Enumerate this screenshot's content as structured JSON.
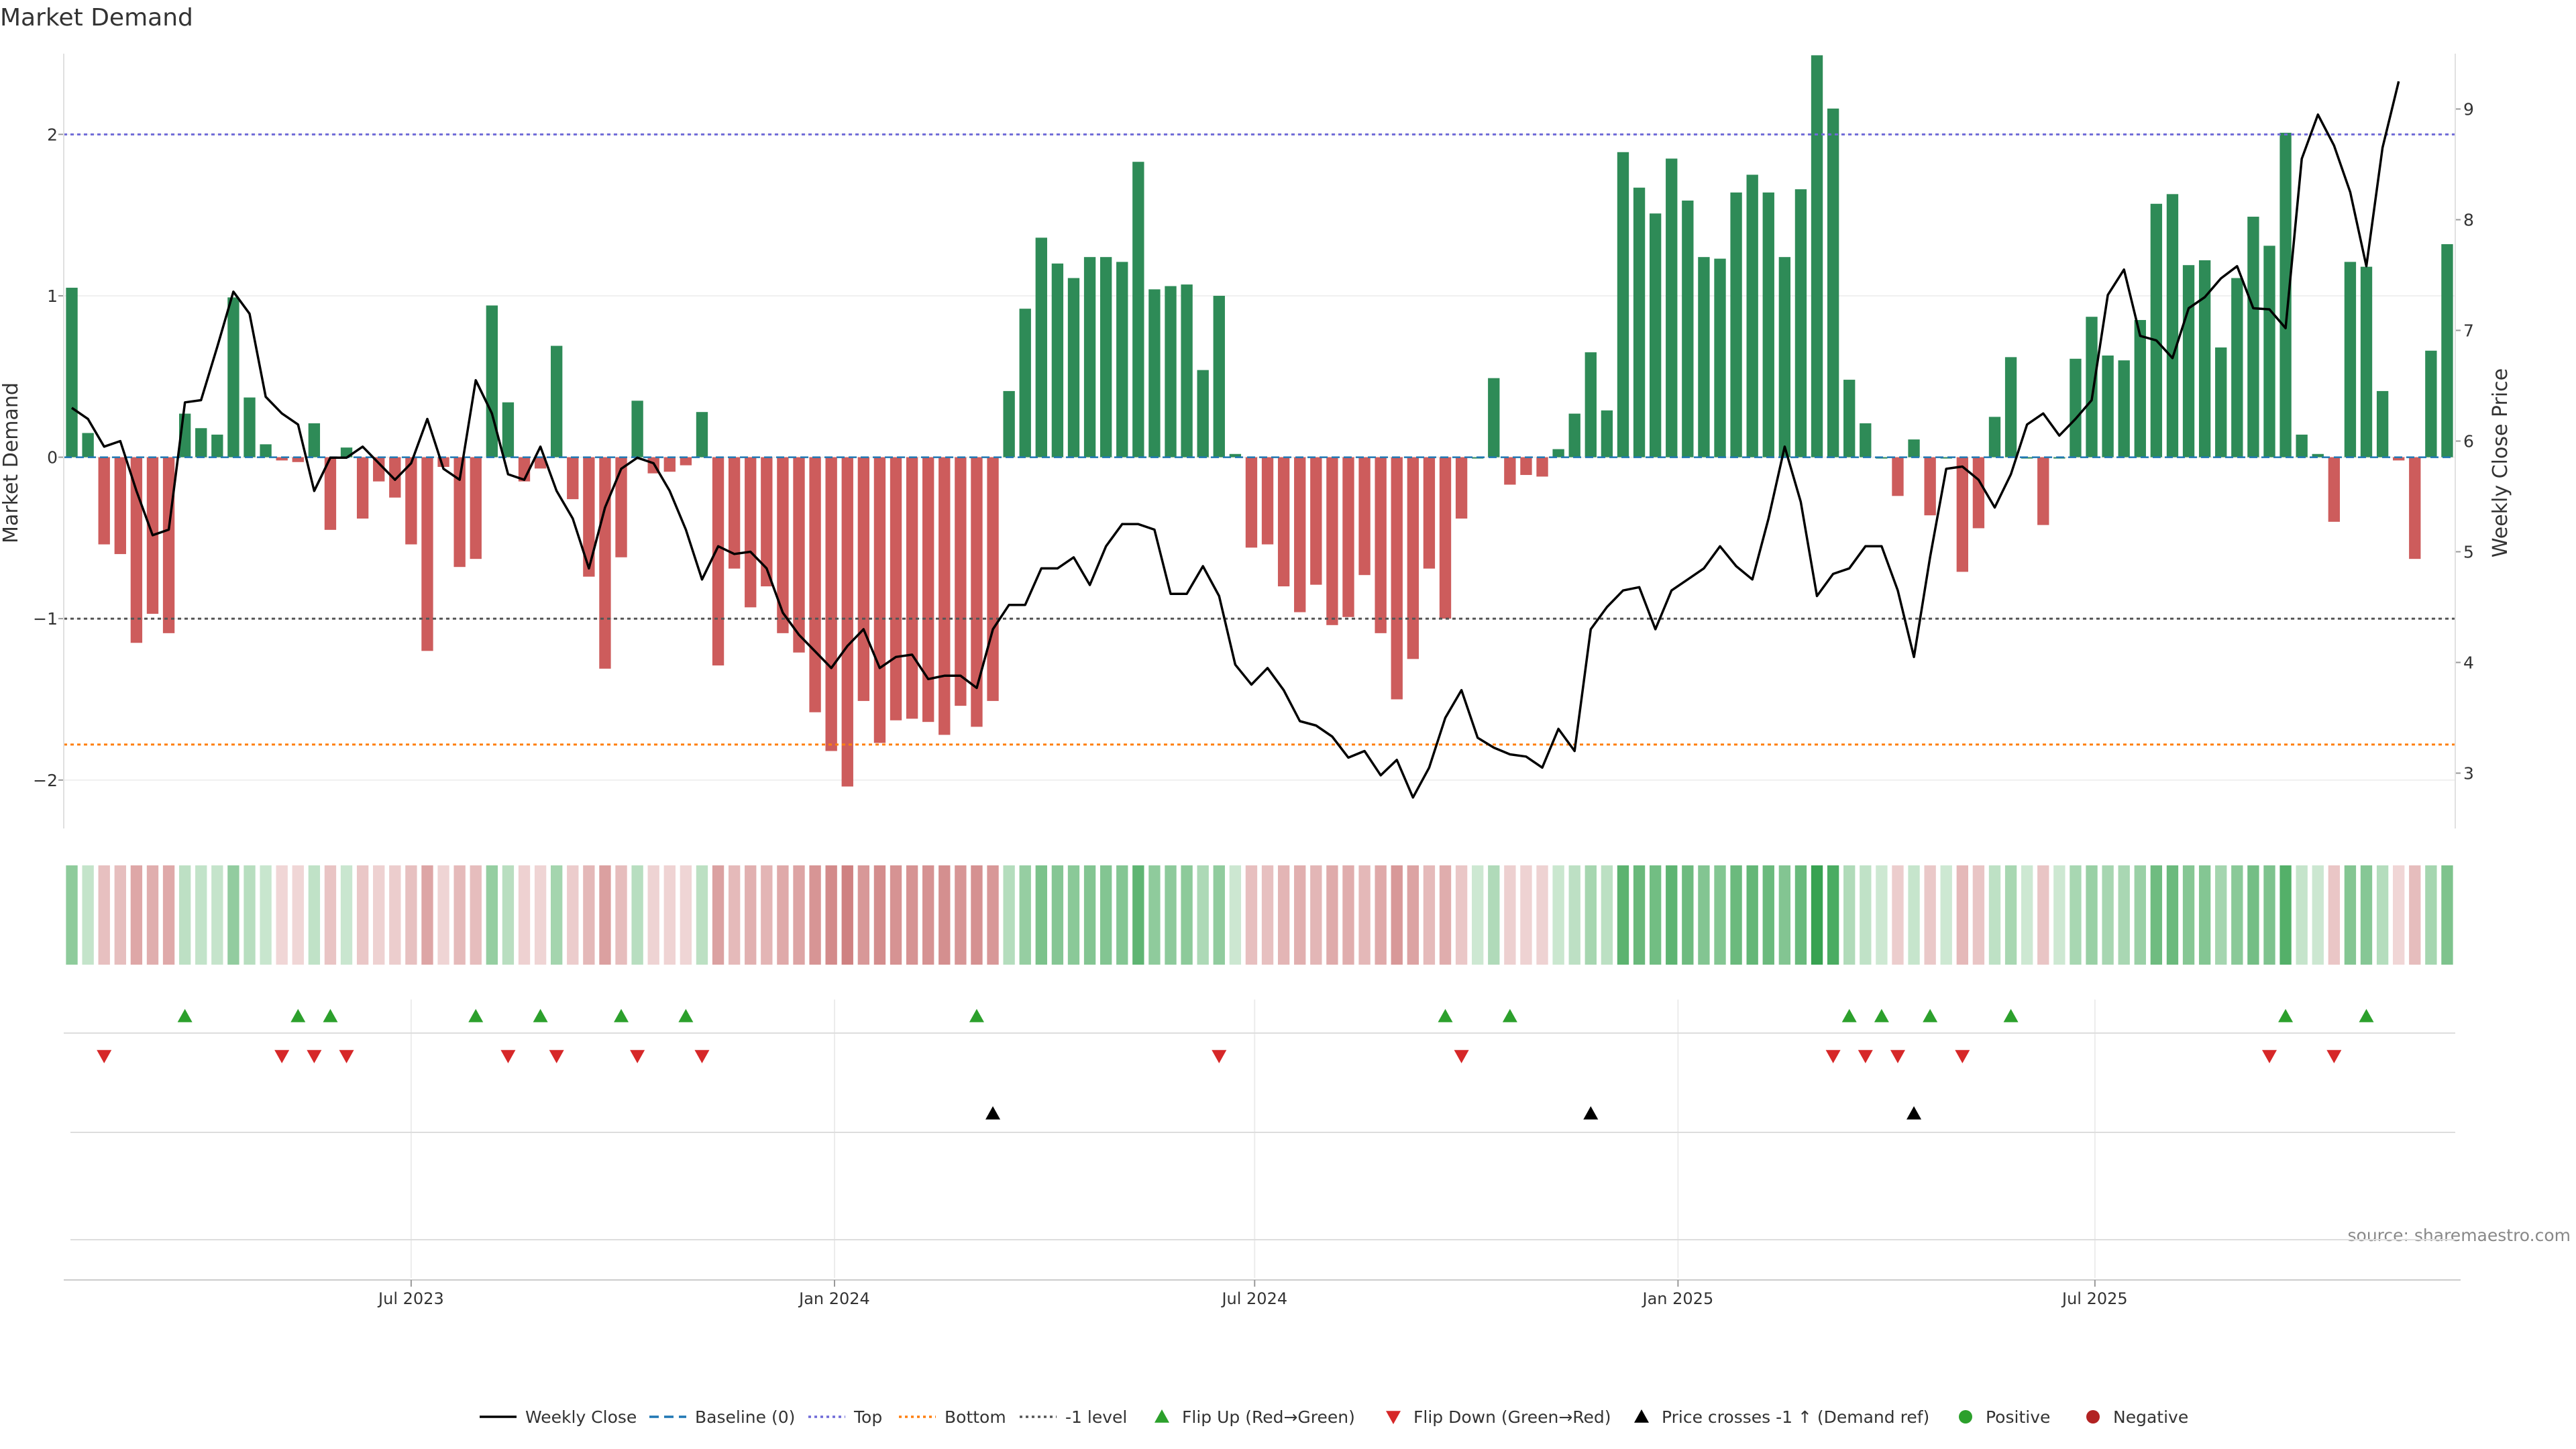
{
  "chart_data": {
    "type": "bar",
    "title": "Market Demand",
    "ylabel": "Market Demand",
    "y2label": "Weekly Close Price",
    "ylim": [
      -2.3,
      2.5
    ],
    "y2lim": [
      2.5,
      9.5
    ],
    "yticks": [
      -2,
      -1,
      0,
      1,
      2
    ],
    "yticklabels": [
      "−2",
      "−1",
      "0",
      "1",
      "2"
    ],
    "y2ticks": [
      3,
      4,
      5,
      6,
      7,
      8,
      9
    ],
    "y2ticklabels": [
      "3",
      "4",
      "5",
      "6",
      "7",
      "8",
      "9"
    ],
    "xticklabels": [
      "Jul 2023",
      "Jan 2024",
      "Jul 2024",
      "Jan 2025",
      "Jul 2025"
    ],
    "xtick_positions": [
      21.5,
      47.7,
      73.7,
      99.9,
      125.7
    ],
    "reference_lines": {
      "top": 2.0,
      "bottom": -1.78,
      "minus_one": -1.0,
      "baseline": 0
    },
    "source": "source: sharemaestro.com",
    "demand": [
      1.05,
      0.15,
      -0.54,
      -0.6,
      -1.15,
      -0.97,
      -1.09,
      0.27,
      0.18,
      0.14,
      0.99,
      0.37,
      0.08,
      -0.02,
      -0.03,
      0.21,
      -0.45,
      0.06,
      -0.38,
      -0.15,
      -0.25,
      -0.54,
      -1.2,
      -0.06,
      -0.68,
      -0.63,
      0.94,
      0.34,
      -0.15,
      -0.07,
      0.69,
      -0.26,
      -0.74,
      -1.31,
      -0.62,
      0.35,
      -0.1,
      -0.09,
      -0.05,
      0.28,
      -1.29,
      -0.69,
      -0.93,
      -0.8,
      -1.09,
      -1.21,
      -1.58,
      -1.82,
      -2.04,
      -1.51,
      -1.77,
      -1.63,
      -1.62,
      -1.64,
      -1.72,
      -1.54,
      -1.67,
      -1.51,
      0.41,
      0.92,
      1.36,
      1.2,
      1.11,
      1.24,
      1.24,
      1.21,
      1.83,
      1.04,
      1.06,
      1.07,
      0.54,
      1.0,
      0.02,
      -0.56,
      -0.54,
      -0.8,
      -0.96,
      -0.79,
      -1.04,
      -0.99,
      -0.73,
      -1.09,
      -1.5,
      -1.25,
      -0.69,
      -1.0,
      -0.38,
      0.0,
      0.49,
      -0.17,
      -0.11,
      -0.12,
      0.05,
      0.27,
      0.65,
      0.29,
      1.89,
      1.67,
      1.51,
      1.85,
      1.59,
      1.24,
      1.23,
      1.64,
      1.75,
      1.64,
      1.24,
      1.66,
      2.49,
      2.16,
      0.48,
      0.21,
      0.0,
      -0.24,
      0.11,
      -0.36,
      0.0,
      -0.71,
      -0.44,
      0.25,
      0.62,
      0.0,
      -0.42,
      0.0,
      0.61,
      0.87,
      0.63,
      0.6,
      0.85,
      1.57,
      1.63,
      1.19,
      1.22,
      0.68,
      1.11,
      1.49,
      1.31,
      2.01,
      0.14,
      0.02,
      -0.4,
      1.21,
      1.18,
      0.41,
      -0.02,
      -0.63,
      0.66,
      1.32
    ],
    "price": [
      6.3,
      6.2,
      5.95,
      6.0,
      5.55,
      5.15,
      5.2,
      6.35,
      6.37,
      6.85,
      7.35,
      7.15,
      6.4,
      6.25,
      6.15,
      5.55,
      5.85,
      5.85,
      5.95,
      5.8,
      5.65,
      5.8,
      6.2,
      5.75,
      5.65,
      6.55,
      6.25,
      5.7,
      5.65,
      5.95,
      5.55,
      5.3,
      4.85,
      5.4,
      5.75,
      5.85,
      5.8,
      5.55,
      5.2,
      4.75,
      5.05,
      4.98,
      5.0,
      4.85,
      4.45,
      4.25,
      4.1,
      3.95,
      4.15,
      4.3,
      3.95,
      4.05,
      4.07,
      3.85,
      3.88,
      3.88,
      3.77,
      4.3,
      4.52,
      4.52,
      4.85,
      4.85,
      4.95,
      4.7,
      5.05,
      5.25,
      5.25,
      5.2,
      4.62,
      4.62,
      4.87,
      4.6,
      3.98,
      3.8,
      3.95,
      3.75,
      3.47,
      3.43,
      3.33,
      3.14,
      3.2,
      2.98,
      3.12,
      2.78,
      3.05,
      3.5,
      3.75,
      3.32,
      3.23,
      3.17,
      3.15,
      3.05,
      3.4,
      3.2,
      4.3,
      4.5,
      4.65,
      4.68,
      4.3,
      4.65,
      4.75,
      4.85,
      5.05,
      4.87,
      4.75,
      5.3,
      5.95,
      5.45,
      4.6,
      4.8,
      4.85,
      5.05,
      5.05,
      4.65,
      4.05,
      4.95,
      5.75,
      5.77,
      5.65,
      5.4,
      5.7,
      6.15,
      6.25,
      6.05,
      6.2,
      6.37,
      7.32,
      7.55,
      6.95,
      6.91,
      6.75,
      7.2,
      7.3,
      7.47,
      7.58,
      7.2,
      7.19,
      7.02,
      8.55,
      8.95,
      8.67,
      8.25,
      7.58,
      8.65,
      9.25
    ],
    "flip_up": [
      7,
      14,
      16,
      25,
      29,
      34,
      38,
      56,
      85,
      89,
      110,
      112,
      115,
      120,
      137,
      142
    ],
    "flip_down": [
      2,
      13,
      15,
      17,
      27,
      30,
      35,
      39,
      71,
      86,
      109,
      111,
      113,
      117,
      136,
      140
    ],
    "price_cross_up": [
      57,
      94,
      114
    ],
    "legend": [
      {
        "label": "Weekly Close",
        "kind": "line",
        "color": "#000000"
      },
      {
        "label": "Baseline (0)",
        "kind": "dashed",
        "color": "#1f77b4"
      },
      {
        "label": "Top",
        "kind": "dotted",
        "color": "#6f6ad8"
      },
      {
        "label": "Bottom",
        "kind": "dotted",
        "color": "#ff7f0e"
      },
      {
        "label": "-1 level",
        "kind": "dotted",
        "color": "#555555"
      },
      {
        "label": "Flip Up (Red→Green)",
        "kind": "tri-up",
        "color": "#2ca02c"
      },
      {
        "label": "Flip Down (Green→Red)",
        "kind": "tri-down",
        "color": "#d62728"
      },
      {
        "label": "Price crosses -1 ↑ (Demand ref)",
        "kind": "tri-up",
        "color": "#000000"
      },
      {
        "label": "Positive",
        "kind": "dot",
        "color": "#2ca02c"
      },
      {
        "label": "Negative",
        "kind": "dot",
        "color": "#b22222"
      }
    ],
    "colors": {
      "positive_bar": "#2e8b57",
      "negative_bar": "#cd5c5c",
      "price_line": "#000000",
      "flip_up": "#2ca02c",
      "flip_down": "#d62728"
    }
  }
}
